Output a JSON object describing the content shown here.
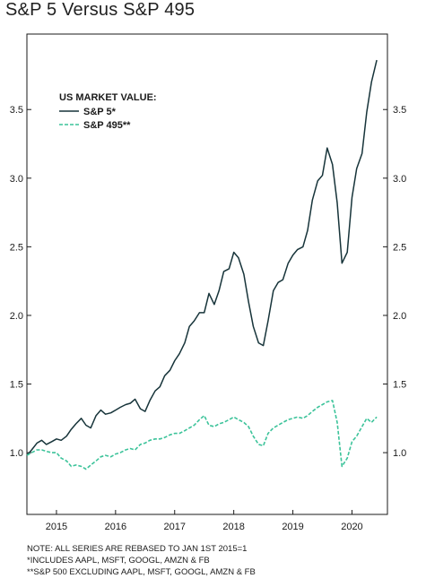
{
  "title": "S&P 5 Versus S&P 495",
  "notes": [
    "NOTE: ALL SERIES ARE REBASED TO JAN 1ST 2015=1",
    "*INCLUDES AAPL, MSFT, GOOGL, AMZN & FB",
    "**S&P 500 EXCLUDING AAPL, MSFT, GOOGL, AMZN & FB"
  ],
  "chart_data": {
    "type": "line",
    "title": "S&P 5 Versus S&P 495",
    "legend_title": "US MARKET VALUE:",
    "legend_position": "top-left",
    "grid": false,
    "y_ticks": [
      "1.0",
      "1.5",
      "2.0",
      "2.5",
      "3.0",
      "3.5"
    ],
    "y_tick_values": [
      1.0,
      1.5,
      2.0,
      2.5,
      3.0,
      3.5
    ],
    "x_ticks": [
      "2015",
      "2016",
      "2017",
      "2018",
      "2019",
      "2020"
    ],
    "x_tick_values": [
      2015.5,
      2016.5,
      2017.5,
      2018.5,
      2019.5,
      2020.5
    ],
    "xlim": [
      2015.0,
      2021.1
    ],
    "ylim": [
      0.55,
      4.05
    ],
    "colors": {
      "sp5": "#17343a",
      "sp495": "#3cc39a",
      "frame": "#1a1a1a"
    },
    "series": [
      {
        "name": "S&P 5*",
        "style": "solid",
        "x": [
          2015.0,
          2015.08,
          2015.17,
          2015.25,
          2015.33,
          2015.42,
          2015.5,
          2015.58,
          2015.67,
          2015.75,
          2015.83,
          2015.92,
          2016.0,
          2016.08,
          2016.17,
          2016.25,
          2016.33,
          2016.42,
          2016.5,
          2016.58,
          2016.67,
          2016.75,
          2016.83,
          2016.92,
          2017.0,
          2017.08,
          2017.17,
          2017.25,
          2017.33,
          2017.42,
          2017.5,
          2017.58,
          2017.67,
          2017.75,
          2017.83,
          2017.92,
          2018.0,
          2018.08,
          2018.17,
          2018.25,
          2018.33,
          2018.42,
          2018.5,
          2018.58,
          2018.67,
          2018.75,
          2018.83,
          2018.92,
          2019.0,
          2019.08,
          2019.17,
          2019.25,
          2019.33,
          2019.42,
          2019.5,
          2019.58,
          2019.67,
          2019.75,
          2019.83,
          2019.92,
          2020.0,
          2020.08,
          2020.17,
          2020.25,
          2020.33,
          2020.42,
          2020.5,
          2020.58,
          2020.67,
          2020.75,
          2020.83,
          2020.92
        ],
        "values": [
          0.98,
          1.02,
          1.07,
          1.09,
          1.06,
          1.08,
          1.1,
          1.09,
          1.12,
          1.17,
          1.21,
          1.25,
          1.2,
          1.18,
          1.27,
          1.31,
          1.28,
          1.29,
          1.31,
          1.33,
          1.35,
          1.36,
          1.39,
          1.32,
          1.3,
          1.38,
          1.45,
          1.48,
          1.56,
          1.6,
          1.67,
          1.72,
          1.8,
          1.92,
          1.96,
          2.02,
          2.02,
          2.16,
          2.08,
          2.18,
          2.32,
          2.34,
          2.46,
          2.42,
          2.3,
          2.1,
          1.92,
          1.8,
          1.78,
          1.96,
          2.18,
          2.24,
          2.26,
          2.38,
          2.44,
          2.48,
          2.5,
          2.62,
          2.84,
          2.98,
          3.02,
          3.22,
          3.1,
          2.82,
          2.38,
          2.46,
          2.86,
          3.07,
          3.18,
          3.48,
          3.7,
          3.86
        ]
      },
      {
        "name": "S&P 495**",
        "style": "dashed",
        "x": [
          2015.0,
          2015.08,
          2015.17,
          2015.25,
          2015.33,
          2015.42,
          2015.5,
          2015.58,
          2015.67,
          2015.75,
          2015.83,
          2015.92,
          2016.0,
          2016.08,
          2016.17,
          2016.25,
          2016.33,
          2016.42,
          2016.5,
          2016.58,
          2016.67,
          2016.75,
          2016.83,
          2016.92,
          2017.0,
          2017.08,
          2017.17,
          2017.25,
          2017.33,
          2017.42,
          2017.5,
          2017.58,
          2017.67,
          2017.75,
          2017.83,
          2017.92,
          2018.0,
          2018.08,
          2018.17,
          2018.25,
          2018.33,
          2018.42,
          2018.5,
          2018.58,
          2018.67,
          2018.75,
          2018.83,
          2018.92,
          2019.0,
          2019.08,
          2019.17,
          2019.25,
          2019.33,
          2019.42,
          2019.5,
          2019.58,
          2019.67,
          2019.75,
          2019.83,
          2019.92,
          2020.0,
          2020.08,
          2020.17,
          2020.25,
          2020.33,
          2020.42,
          2020.5,
          2020.58,
          2020.67,
          2020.75,
          2020.83,
          2020.92
        ],
        "values": [
          0.98,
          1.0,
          1.02,
          1.02,
          1.01,
          1.0,
          1.0,
          0.96,
          0.94,
          0.9,
          0.91,
          0.9,
          0.88,
          0.91,
          0.94,
          0.97,
          0.98,
          0.97,
          0.99,
          1.0,
          1.02,
          1.03,
          1.02,
          1.06,
          1.07,
          1.09,
          1.1,
          1.1,
          1.11,
          1.13,
          1.14,
          1.14,
          1.16,
          1.18,
          1.2,
          1.24,
          1.27,
          1.2,
          1.19,
          1.21,
          1.22,
          1.24,
          1.26,
          1.24,
          1.22,
          1.19,
          1.12,
          1.06,
          1.05,
          1.14,
          1.18,
          1.2,
          1.22,
          1.24,
          1.25,
          1.26,
          1.25,
          1.27,
          1.3,
          1.33,
          1.35,
          1.37,
          1.38,
          1.22,
          0.9,
          0.96,
          1.08,
          1.12,
          1.19,
          1.25,
          1.22,
          1.26
        ]
      }
    ]
  }
}
